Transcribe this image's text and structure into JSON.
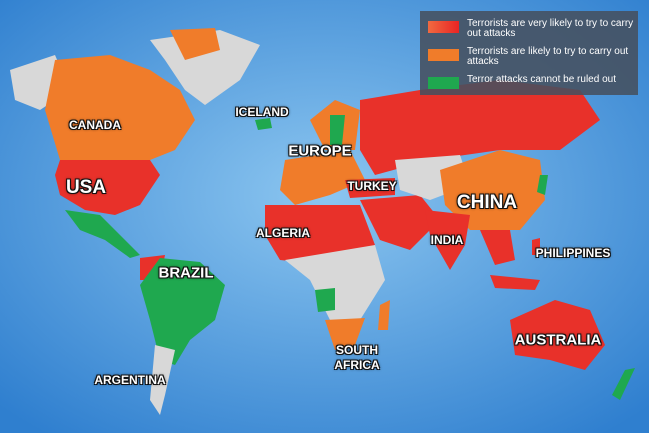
{
  "legend": {
    "items": [
      {
        "label": "Terrorists are very likely to try to carry out attacks",
        "color": "#e8312a"
      },
      {
        "label": "Terrorists are likely to try to carry out attacks",
        "color": "#f07c2a"
      },
      {
        "label": "Terror attacks cannot be ruled out",
        "color": "#1fa84f"
      }
    ]
  },
  "colors": {
    "ocean": "#4f9de0",
    "no_data": "#d8d8d8",
    "very_likely": "#e8312a",
    "likely": "#f07c2a",
    "cannot_rule_out": "#1fa84f"
  },
  "labels": {
    "iceland": "ICELAND",
    "canada": "CANADA",
    "europe": "EUROPE",
    "usa": "USA",
    "turkey": "TURKEY",
    "china": "CHINA",
    "algeria": "ALGERIA",
    "india": "INDIA",
    "philippines": "PHILIPPINES",
    "brazil": "BRAZIL",
    "australia": "AUSTRALIA",
    "south_africa": "SOUTH AFRICA",
    "argentina": "ARGENTINA"
  }
}
